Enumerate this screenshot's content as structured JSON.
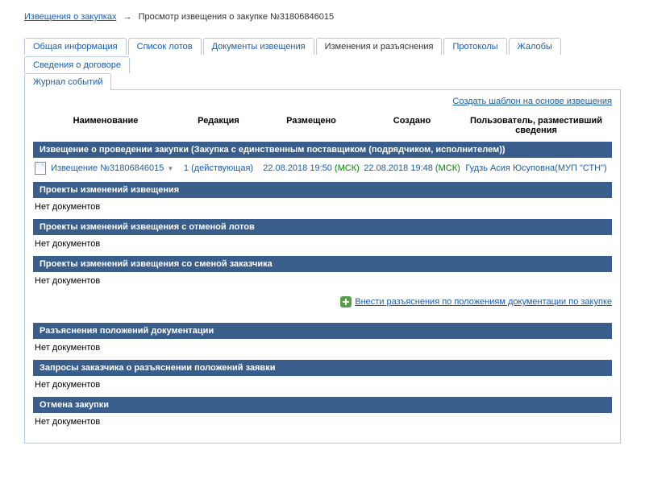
{
  "breadcrumb": {
    "root_label": "Извещения о закупках",
    "arrow": "→",
    "current": "Просмотр извещения о закупке №31806846015"
  },
  "tabs": {
    "general": "Общая информация",
    "lots": "Список лотов",
    "docs": "Документы извещения",
    "changes": "Изменения и разъяснения",
    "protocols": "Протоколы",
    "complaints": "Жалобы",
    "contract": "Сведения о договоре",
    "log": "Журнал событий"
  },
  "actions": {
    "create_template": "Создать шаблон на основе извещения",
    "add_clarification": "Внести разъяснения по положениям документации по закупке"
  },
  "columns": {
    "name": "Наименование",
    "edition": "Редакция",
    "placed": "Размещено",
    "created": "Создано",
    "user": "Пользователь, разместивший сведения"
  },
  "sections": {
    "notice": "Извещение о проведении закупки (Закупка с единственным поставщиком (подрядчиком, исполнителем))",
    "draft_changes": "Проекты изменений извещения",
    "draft_changes_cancel": "Проекты изменений извещения с отменой лотов",
    "draft_changes_customer": "Проекты изменений извещения со сменой заказчика",
    "clarifications": "Разъяснения положений документации",
    "requests": "Запросы заказчика о разъяснении положений заявки",
    "cancel": "Отмена закупки"
  },
  "row": {
    "name": "Извещение №31806846015",
    "edition": "1 (действующая)",
    "placed_dt": "22.08.2018 19:50",
    "placed_tz": "(МСК)",
    "created_dt": "22.08.2018 19:48",
    "created_tz": "(МСК)",
    "user": "Гудзь Асия Юсуповна(МУП \"СТН\")"
  },
  "no_docs": "Нет документов"
}
